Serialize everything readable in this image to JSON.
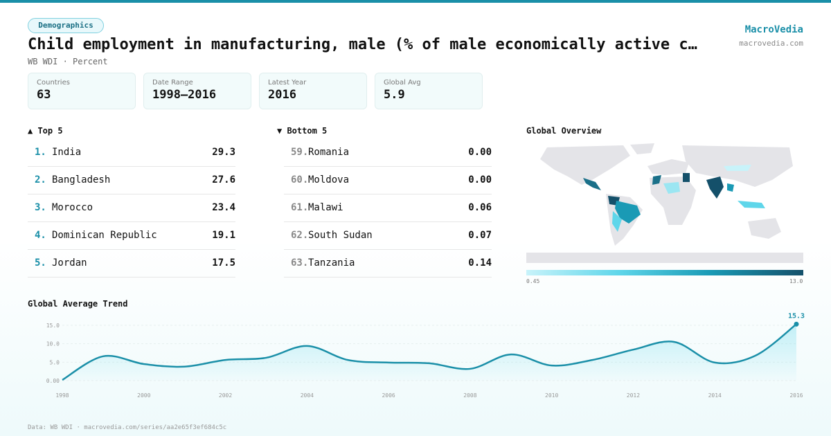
{
  "header": {
    "tag": "Demographics",
    "title": "Child employment in manufacturing, male (% of male economically active c…",
    "subtitle": "WB WDI · Percent",
    "brand": "MacroVedia",
    "url": "macrovedia.com"
  },
  "stats": [
    {
      "label": "Countries",
      "value": "63"
    },
    {
      "label": "Date Range",
      "value": "1998–2016"
    },
    {
      "label": "Latest Year",
      "value": "2016"
    },
    {
      "label": "Global Avg",
      "value": "5.9"
    }
  ],
  "top": {
    "heading": "▲ Top 5",
    "items": [
      {
        "rank": "1.",
        "name": "India",
        "value": "29.3"
      },
      {
        "rank": "2.",
        "name": "Bangladesh",
        "value": "27.6"
      },
      {
        "rank": "3.",
        "name": "Morocco",
        "value": "23.4"
      },
      {
        "rank": "4.",
        "name": "Dominican Republic",
        "value": "19.1"
      },
      {
        "rank": "5.",
        "name": "Jordan",
        "value": "17.5"
      }
    ]
  },
  "bottom": {
    "heading": "▼ Bottom 5",
    "items": [
      {
        "rank": "59.",
        "name": "Romania",
        "value": "0.00"
      },
      {
        "rank": "60.",
        "name": "Moldova",
        "value": "0.00"
      },
      {
        "rank": "61.",
        "name": "Malawi",
        "value": "0.06"
      },
      {
        "rank": "62.",
        "name": "South Sudan",
        "value": "0.07"
      },
      {
        "rank": "63.",
        "name": "Tanzania",
        "value": "0.14"
      }
    ]
  },
  "map": {
    "title": "Global Overview",
    "legend_min": "0.45",
    "legend_max": "13.0"
  },
  "chart_data": {
    "type": "line",
    "title": "Global Average Trend",
    "color": "#1a8fa8",
    "x": [
      1998,
      1999,
      2000,
      2001,
      2002,
      2003,
      2004,
      2005,
      2006,
      2007,
      2008,
      2009,
      2010,
      2011,
      2012,
      2013,
      2014,
      2015,
      2016
    ],
    "values": [
      0.2,
      6.6,
      4.5,
      3.8,
      5.6,
      6.2,
      9.4,
      5.6,
      4.9,
      4.7,
      3.2,
      7.1,
      4.1,
      5.6,
      8.4,
      10.5,
      4.9,
      6.8,
      15.3
    ],
    "value_labels": [
      null,
      null,
      null,
      null,
      null,
      null,
      null,
      null,
      null,
      null,
      null,
      null,
      null,
      null,
      null,
      null,
      null,
      null,
      "15.3"
    ],
    "xlim": [
      1998,
      2016
    ],
    "xticks": [
      1998,
      2000,
      2002,
      2004,
      2006,
      2008,
      2010,
      2012,
      2014,
      2016
    ],
    "ylim": [
      0,
      15
    ],
    "yticks": [
      {
        "value": 0,
        "label": "0.00"
      },
      {
        "value": 5,
        "label": "5.0"
      },
      {
        "value": 10,
        "label": "10.0"
      },
      {
        "value": 15,
        "label": "15.0"
      }
    ],
    "grid": true
  },
  "footer": "Data: WB WDI · macrovedia.com/series/aa2e65f3ef684c5c"
}
